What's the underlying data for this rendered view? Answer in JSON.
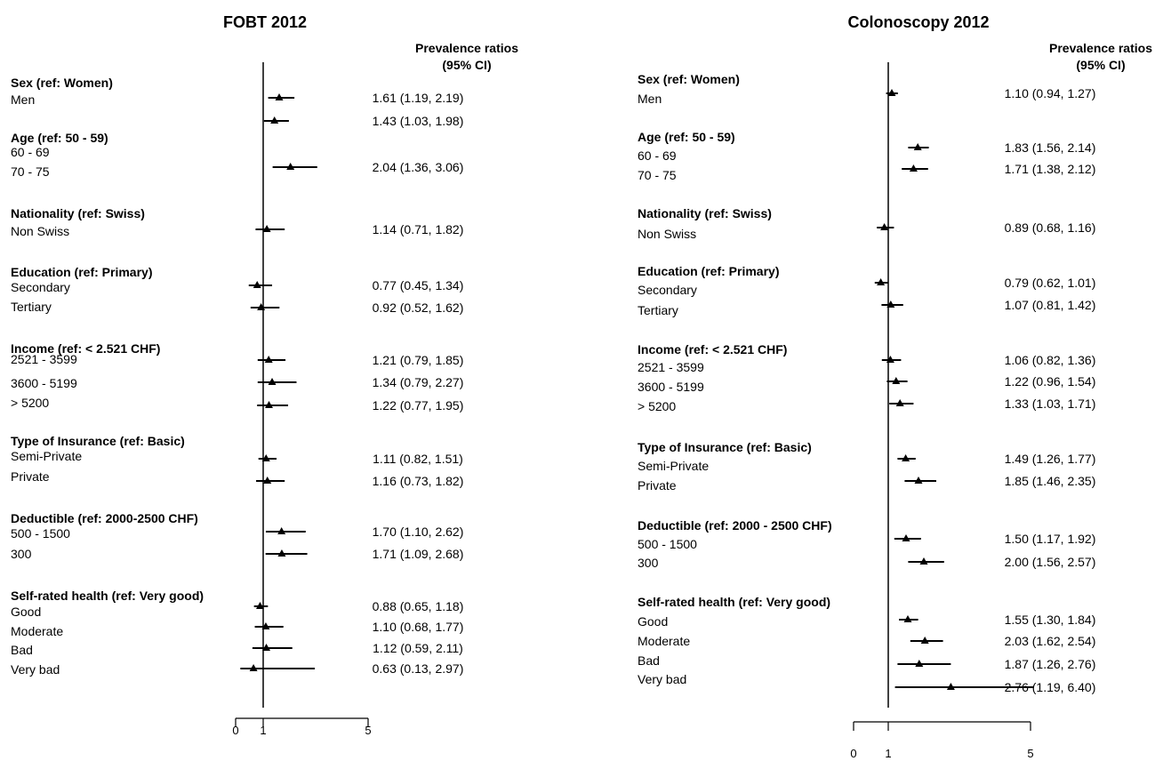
{
  "chart_data": [
    {
      "type": "forest",
      "title": "FOBT 2012",
      "stat_header": [
        "Prevalence ratios",
        "(95% CI)"
      ],
      "axis": {
        "range": [
          0,
          5
        ],
        "ticks": [
          "0",
          "1",
          "5"
        ],
        "ref_line": 1
      },
      "groups": [
        {
          "label": "Sex (ref: Women)",
          "rows": [
            {
              "label": "Men",
              "pr": 1.61,
              "lo": 1.19,
              "hi": 2.19,
              "text": "1.61 (1.19, 2.19)"
            }
          ]
        },
        {
          "label": "Age (ref: 50 - 59)",
          "rows": [
            {
              "label": "60 - 69",
              "pr": 1.43,
              "lo": 1.03,
              "hi": 1.98,
              "text": "1.43 (1.03, 1.98)"
            },
            {
              "label": "70 - 75",
              "pr": 2.04,
              "lo": 1.36,
              "hi": 3.06,
              "text": "2.04 (1.36, 3.06)"
            }
          ]
        },
        {
          "label": "Nationality (ref: Swiss)",
          "rows": [
            {
              "label": "Non Swiss",
              "pr": 1.14,
              "lo": 0.71,
              "hi": 1.82,
              "text": "1.14 (0.71, 1.82)"
            }
          ]
        },
        {
          "label": "Education (ref: Primary)",
          "rows": [
            {
              "label": "Secondary",
              "pr": 0.77,
              "lo": 0.45,
              "hi": 1.34,
              "text": "0.77 (0.45, 1.34)"
            },
            {
              "label": "Tertiary",
              "pr": 0.92,
              "lo": 0.52,
              "hi": 1.62,
              "text": "0.92 (0.52, 1.62)"
            }
          ]
        },
        {
          "label": "Income (ref: < 2.521 CHF)",
          "rows": [
            {
              "label": "2521 - 3599",
              "pr": 1.21,
              "lo": 0.79,
              "hi": 1.85,
              "text": "1.21 (0.79, 1.85)"
            },
            {
              "label": "3600 - 5199",
              "pr": 1.34,
              "lo": 0.79,
              "hi": 2.27,
              "text": "1.34 (0.79, 2.27)"
            },
            {
              "label": "> 5200",
              "pr": 1.22,
              "lo": 0.77,
              "hi": 1.95,
              "text": "1.22 (0.77, 1.95)"
            }
          ]
        },
        {
          "label": "Type of Insurance (ref: Basic)",
          "rows": [
            {
              "label": "Semi-Private",
              "pr": 1.11,
              "lo": 0.82,
              "hi": 1.51,
              "text": "1.11 (0.82, 1.51)"
            },
            {
              "label": "Private",
              "pr": 1.16,
              "lo": 0.73,
              "hi": 1.82,
              "text": "1.16 (0.73, 1.82)"
            }
          ]
        },
        {
          "label": "Deductible (ref: 2000-2500 CHF)",
          "rows": [
            {
              "label": "500 - 1500",
              "pr": 1.7,
              "lo": 1.1,
              "hi": 2.62,
              "text": "1.70 (1.10, 2.62)"
            },
            {
              "label": "300",
              "pr": 1.71,
              "lo": 1.09,
              "hi": 2.68,
              "text": "1.71 (1.09, 2.68)"
            }
          ]
        },
        {
          "label": "Self-rated health (ref: Very good)",
          "rows": [
            {
              "label": "Good",
              "pr": 0.88,
              "lo": 0.65,
              "hi": 1.18,
              "text": "0.88 (0.65, 1.18)"
            },
            {
              "label": "Moderate",
              "pr": 1.1,
              "lo": 0.68,
              "hi": 1.77,
              "text": "1.10 (0.68, 1.77)"
            },
            {
              "label": "Bad",
              "pr": 1.12,
              "lo": 0.59,
              "hi": 2.11,
              "text": "1.12 (0.59, 2.11)"
            },
            {
              "label": "Very bad",
              "pr": 0.63,
              "lo": 0.13,
              "hi": 2.97,
              "text": "0.63 (0.13, 2.97)"
            }
          ]
        }
      ]
    },
    {
      "type": "forest",
      "title": "Colonoscopy 2012",
      "stat_header": [
        "Prevalence ratios",
        "(95% CI)"
      ],
      "axis": {
        "range": [
          0,
          5
        ],
        "ticks": [
          "0",
          "1",
          "5"
        ],
        "ref_line": 1
      },
      "groups": [
        {
          "label": "Sex (ref: Women)",
          "rows": [
            {
              "label": "Men",
              "pr": 1.1,
              "lo": 0.94,
              "hi": 1.27,
              "text": "1.10 (0.94, 1.27)"
            }
          ]
        },
        {
          "label": "Age (ref: 50 - 59)",
          "rows": [
            {
              "label": "60 - 69",
              "pr": 1.83,
              "lo": 1.56,
              "hi": 2.14,
              "text": "1.83 (1.56, 2.14)"
            },
            {
              "label": "70 - 75",
              "pr": 1.71,
              "lo": 1.38,
              "hi": 2.12,
              "text": "1.71 (1.38, 2.12)"
            }
          ]
        },
        {
          "label": "Nationality (ref: Swiss)",
          "rows": [
            {
              "label": "Non Swiss",
              "pr": 0.89,
              "lo": 0.68,
              "hi": 1.16,
              "text": "0.89 (0.68, 1.16)"
            }
          ]
        },
        {
          "label": "Education (ref: Primary)",
          "rows": [
            {
              "label": "Secondary",
              "pr": 0.79,
              "lo": 0.62,
              "hi": 1.01,
              "text": "0.79 (0.62, 1.01)"
            },
            {
              "label": "Tertiary",
              "pr": 1.07,
              "lo": 0.81,
              "hi": 1.42,
              "text": "1.07 (0.81, 1.42)"
            }
          ]
        },
        {
          "label": "Income (ref: < 2.521 CHF)",
          "rows": [
            {
              "label": "2521 - 3599",
              "pr": 1.06,
              "lo": 0.82,
              "hi": 1.36,
              "text": "1.06 (0.82, 1.36)"
            },
            {
              "label": "3600 - 5199",
              "pr": 1.22,
              "lo": 0.96,
              "hi": 1.54,
              "text": "1.22 (0.96, 1.54)"
            },
            {
              "label": "> 5200",
              "pr": 1.33,
              "lo": 1.03,
              "hi": 1.71,
              "text": "1.33 (1.03, 1.71)"
            }
          ]
        },
        {
          "label": "Type of Insurance (ref: Basic)",
          "rows": [
            {
              "label": "Semi-Private",
              "pr": 1.49,
              "lo": 1.26,
              "hi": 1.77,
              "text": "1.49 (1.26, 1.77)"
            },
            {
              "label": "Private",
              "pr": 1.85,
              "lo": 1.46,
              "hi": 2.35,
              "text": "1.85 (1.46, 2.35)"
            }
          ]
        },
        {
          "label": "Deductible (ref: 2000 - 2500 CHF)",
          "rows": [
            {
              "label": "500 - 1500",
              "pr": 1.5,
              "lo": 1.17,
              "hi": 1.92,
              "text": "1.50 (1.17, 1.92)"
            },
            {
              "label": "300",
              "pr": 2.0,
              "lo": 1.56,
              "hi": 2.57,
              "text": "2.00 (1.56, 2.57)"
            }
          ]
        },
        {
          "label": "Self-rated health (ref: Very good)",
          "rows": [
            {
              "label": "Good",
              "pr": 1.55,
              "lo": 1.3,
              "hi": 1.84,
              "text": "1.55 (1.30, 1.84)"
            },
            {
              "label": "Moderate",
              "pr": 2.03,
              "lo": 1.62,
              "hi": 2.54,
              "text": "2.03 (1.62, 2.54)"
            },
            {
              "label": "Bad",
              "pr": 1.87,
              "lo": 1.26,
              "hi": 2.76,
              "text": "1.87 (1.26, 2.76)"
            },
            {
              "label": "Very bad",
              "pr": 2.76,
              "lo": 1.19,
              "hi": 6.4,
              "text": "2.76 (1.19, 6.40)"
            }
          ]
        }
      ]
    }
  ]
}
